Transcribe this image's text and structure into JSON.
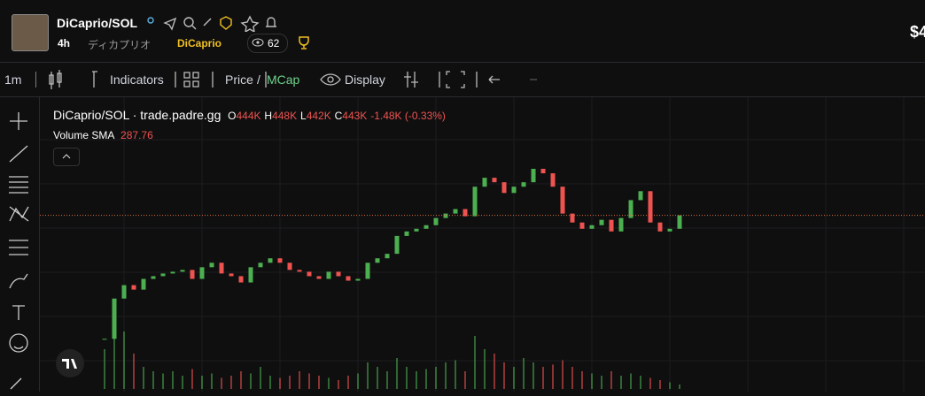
{
  "header": {
    "symbol": "DiCaprio/SOL",
    "timeframe": "4h",
    "alt_name": "ディカプリオ",
    "dev": "DiCaprio",
    "watchers": 62,
    "price": "$4"
  },
  "toolbar": {
    "interval": "1m",
    "indicators": "Indicators",
    "price": "Price",
    "separator": "/",
    "mcap": "MCap",
    "display": "Display"
  },
  "legend": {
    "title": "DiCaprio/SOL · trade.padre.gg",
    "o_label": "O",
    "o": "444K",
    "h_label": "H",
    "h": "448K",
    "l_label": "L",
    "l": "442K",
    "c_label": "C",
    "c": "443K",
    "change": "-1.48K (-0.33%)",
    "volume_label": "Volume SMA",
    "volume_sma": "287.76"
  },
  "chart_data": {
    "type": "candlestick",
    "closes": [
      374,
      396.5,
      404,
      401.5,
      407.5,
      409,
      410.5,
      411.5,
      412.5,
      407.5,
      414,
      416.5,
      410.5,
      409,
      405.5,
      414,
      416.5,
      419,
      416.5,
      412.5,
      411.5,
      409,
      407.5,
      411.5,
      409,
      406.5,
      407.5,
      416.5,
      419,
      421.5,
      431.5,
      434,
      435.5,
      437.5,
      441.5,
      444,
      446.5,
      442.5,
      459,
      464,
      461.5,
      455.5,
      459,
      461.5,
      469,
      466.5,
      459,
      444,
      439,
      435.5,
      437.5,
      440.5,
      434,
      441.5,
      451.5,
      456.5,
      439,
      434,
      435.5,
      443
    ],
    "volumes": [
      900,
      1400,
      1300,
      800,
      500,
      400,
      350,
      400,
      300,
      450,
      300,
      350,
      250,
      300,
      400,
      350,
      500,
      300,
      250,
      300,
      400,
      350,
      300,
      250,
      200,
      300,
      350,
      600,
      500,
      400,
      700,
      500,
      400,
      450,
      500,
      600,
      650,
      400,
      1200,
      900,
      800,
      600,
      500,
      700,
      600,
      500,
      550,
      650,
      500,
      400,
      350,
      300,
      400,
      300,
      350,
      300,
      250,
      200,
      150,
      100
    ],
    "ylim": [
      346,
      509
    ],
    "volume_ylim": [
      0,
      2000
    ],
    "up_color": "#4caf50",
    "down_color": "#ef5350",
    "price_line_color": "#e07040"
  }
}
